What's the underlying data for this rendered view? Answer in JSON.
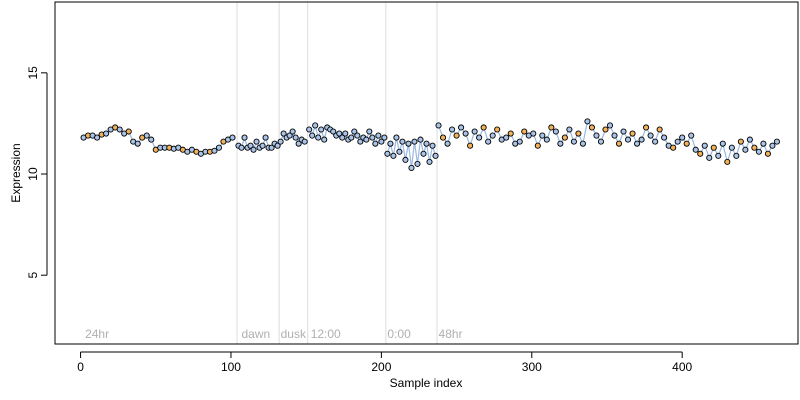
{
  "chart_data": {
    "type": "scatter",
    "title": "",
    "xlabel": "Sample index",
    "ylabel": "Expression",
    "xlim": [
      -17,
      477
    ],
    "ylim": [
      1.6,
      18.5
    ],
    "xticks": [
      0,
      100,
      200,
      300,
      400
    ],
    "yticks": [
      5,
      10,
      15
    ],
    "grid": false,
    "legend": "none",
    "colors": {
      "point_fill_light": "#a9c4e8",
      "point_fill_warm": "#f2b25c",
      "point_edge": "#000000",
      "fit_line": "#7fa6d9",
      "separator": "#dddddd",
      "annotation": "#b0b0b0"
    },
    "separators_x": [
      104,
      132,
      151,
      203,
      237
    ],
    "annotations": [
      {
        "x": 3,
        "text": "24hr"
      },
      {
        "x": 107,
        "text": "dawn"
      },
      {
        "x": 133,
        "text": "dusk"
      },
      {
        "x": 153,
        "text": "12:00"
      },
      {
        "x": 204,
        "text": "0:00"
      },
      {
        "x": 238,
        "text": "48hr"
      }
    ],
    "segments": [
      {
        "name": "24hr",
        "x": [
          0,
          104
        ],
        "points": [
          [
            2,
            11.8
          ],
          [
            5,
            11.9
          ],
          [
            8,
            11.9
          ],
          [
            11,
            11.8
          ],
          [
            14,
            11.95
          ],
          [
            17,
            12.0
          ],
          [
            20,
            12.2
          ],
          [
            23,
            12.3
          ],
          [
            26,
            12.2
          ],
          [
            29,
            12.0
          ],
          [
            32,
            12.1
          ],
          [
            35,
            11.6
          ],
          [
            38,
            11.5
          ],
          [
            41,
            11.8
          ],
          [
            44,
            11.9
          ],
          [
            47,
            11.7
          ],
          [
            50,
            11.2
          ],
          [
            53,
            11.3
          ],
          [
            56,
            11.3
          ],
          [
            59,
            11.3
          ],
          [
            62,
            11.25
          ],
          [
            65,
            11.3
          ],
          [
            68,
            11.2
          ],
          [
            71,
            11.1
          ],
          [
            74,
            11.2
          ],
          [
            77,
            11.1
          ],
          [
            80,
            11.0
          ],
          [
            83,
            11.1
          ],
          [
            86,
            11.1
          ],
          [
            89,
            11.15
          ],
          [
            92,
            11.3
          ],
          [
            95,
            11.6
          ],
          [
            98,
            11.7
          ],
          [
            101,
            11.8
          ]
        ]
      },
      {
        "name": "dawn",
        "x": [
          104,
          132
        ],
        "points": [
          [
            105,
            11.4
          ],
          [
            107,
            11.3
          ],
          [
            109,
            11.8
          ],
          [
            111,
            11.3
          ],
          [
            113,
            11.4
          ],
          [
            115,
            11.2
          ],
          [
            117,
            11.6
          ],
          [
            119,
            11.3
          ],
          [
            121,
            11.4
          ],
          [
            123,
            11.8
          ],
          [
            125,
            11.3
          ],
          [
            127,
            11.3
          ],
          [
            129,
            11.5
          ],
          [
            131,
            11.4
          ]
        ]
      },
      {
        "name": "dusk",
        "x": [
          132,
          151
        ],
        "points": [
          [
            133,
            11.6
          ],
          [
            135,
            12.0
          ],
          [
            137,
            11.8
          ],
          [
            139,
            11.9
          ],
          [
            141,
            12.1
          ],
          [
            143,
            11.8
          ],
          [
            145,
            11.5
          ],
          [
            147,
            11.7
          ],
          [
            149,
            11.6
          ]
        ]
      },
      {
        "name": "12:00",
        "x": [
          151,
          203
        ],
        "points": [
          [
            152,
            12.2
          ],
          [
            154,
            11.9
          ],
          [
            156,
            12.4
          ],
          [
            158,
            11.8
          ],
          [
            160,
            12.2
          ],
          [
            162,
            11.7
          ],
          [
            164,
            12.3
          ],
          [
            166,
            12.2
          ],
          [
            168,
            12.1
          ],
          [
            170,
            11.9
          ],
          [
            172,
            12.0
          ],
          [
            174,
            11.8
          ],
          [
            176,
            12.0
          ],
          [
            178,
            11.7
          ],
          [
            180,
            11.8
          ],
          [
            182,
            12.1
          ],
          [
            184,
            11.9
          ],
          [
            186,
            11.6
          ],
          [
            188,
            11.8
          ],
          [
            190,
            11.7
          ],
          [
            192,
            12.1
          ],
          [
            194,
            11.8
          ],
          [
            196,
            11.5
          ],
          [
            198,
            11.9
          ],
          [
            200,
            11.6
          ],
          [
            202,
            11.8
          ]
        ]
      },
      {
        "name": "0:00",
        "x": [
          203,
          237
        ],
        "points": [
          [
            204,
            11.0
          ],
          [
            206,
            11.5
          ],
          [
            208,
            10.9
          ],
          [
            210,
            11.8
          ],
          [
            212,
            11.1
          ],
          [
            214,
            11.6
          ],
          [
            216,
            10.7
          ],
          [
            218,
            11.5
          ],
          [
            220,
            10.3
          ],
          [
            222,
            11.6
          ],
          [
            224,
            10.5
          ],
          [
            226,
            11.7
          ],
          [
            228,
            11.0
          ],
          [
            230,
            11.5
          ],
          [
            232,
            10.6
          ],
          [
            234,
            11.4
          ],
          [
            236,
            10.9
          ]
        ]
      },
      {
        "name": "48hr",
        "x": [
          237,
          465
        ],
        "points": [
          [
            238,
            12.4
          ],
          [
            241,
            11.8
          ],
          [
            244,
            11.5
          ],
          [
            247,
            12.2
          ],
          [
            250,
            11.9
          ],
          [
            253,
            12.3
          ],
          [
            256,
            12.0
          ],
          [
            259,
            11.4
          ],
          [
            262,
            12.1
          ],
          [
            265,
            11.8
          ],
          [
            268,
            12.3
          ],
          [
            271,
            11.6
          ],
          [
            274,
            11.9
          ],
          [
            277,
            12.2
          ],
          [
            280,
            11.7
          ],
          [
            283,
            11.8
          ],
          [
            286,
            12.0
          ],
          [
            289,
            11.5
          ],
          [
            292,
            11.6
          ],
          [
            295,
            12.1
          ],
          [
            298,
            11.9
          ],
          [
            301,
            12.0
          ],
          [
            304,
            11.4
          ],
          [
            307,
            11.9
          ],
          [
            310,
            11.7
          ],
          [
            313,
            12.3
          ],
          [
            316,
            12.1
          ],
          [
            319,
            11.5
          ],
          [
            322,
            11.8
          ],
          [
            325,
            12.2
          ],
          [
            328,
            11.6
          ],
          [
            331,
            12.0
          ],
          [
            334,
            11.5
          ],
          [
            337,
            12.6
          ],
          [
            340,
            12.3
          ],
          [
            343,
            11.9
          ],
          [
            346,
            11.6
          ],
          [
            349,
            12.2
          ],
          [
            352,
            12.4
          ],
          [
            355,
            11.9
          ],
          [
            358,
            11.5
          ],
          [
            361,
            12.1
          ],
          [
            364,
            11.7
          ],
          [
            367,
            12.0
          ],
          [
            370,
            11.5
          ],
          [
            373,
            11.7
          ],
          [
            376,
            12.3
          ],
          [
            379,
            11.9
          ],
          [
            382,
            11.6
          ],
          [
            385,
            12.2
          ],
          [
            388,
            11.8
          ],
          [
            391,
            11.4
          ],
          [
            394,
            11.3
          ],
          [
            397,
            11.6
          ],
          [
            400,
            11.8
          ],
          [
            403,
            11.5
          ],
          [
            406,
            11.9
          ],
          [
            409,
            11.2
          ],
          [
            412,
            11.0
          ],
          [
            415,
            11.4
          ],
          [
            418,
            10.8
          ],
          [
            421,
            11.3
          ],
          [
            424,
            10.9
          ],
          [
            427,
            11.5
          ],
          [
            430,
            10.6
          ],
          [
            433,
            11.3
          ],
          [
            436,
            10.9
          ],
          [
            439,
            11.6
          ],
          [
            442,
            11.2
          ],
          [
            445,
            11.7
          ],
          [
            448,
            11.3
          ],
          [
            451,
            11.1
          ],
          [
            454,
            11.5
          ],
          [
            457,
            11.0
          ],
          [
            460,
            11.4
          ],
          [
            463,
            11.6
          ]
        ]
      }
    ]
  }
}
